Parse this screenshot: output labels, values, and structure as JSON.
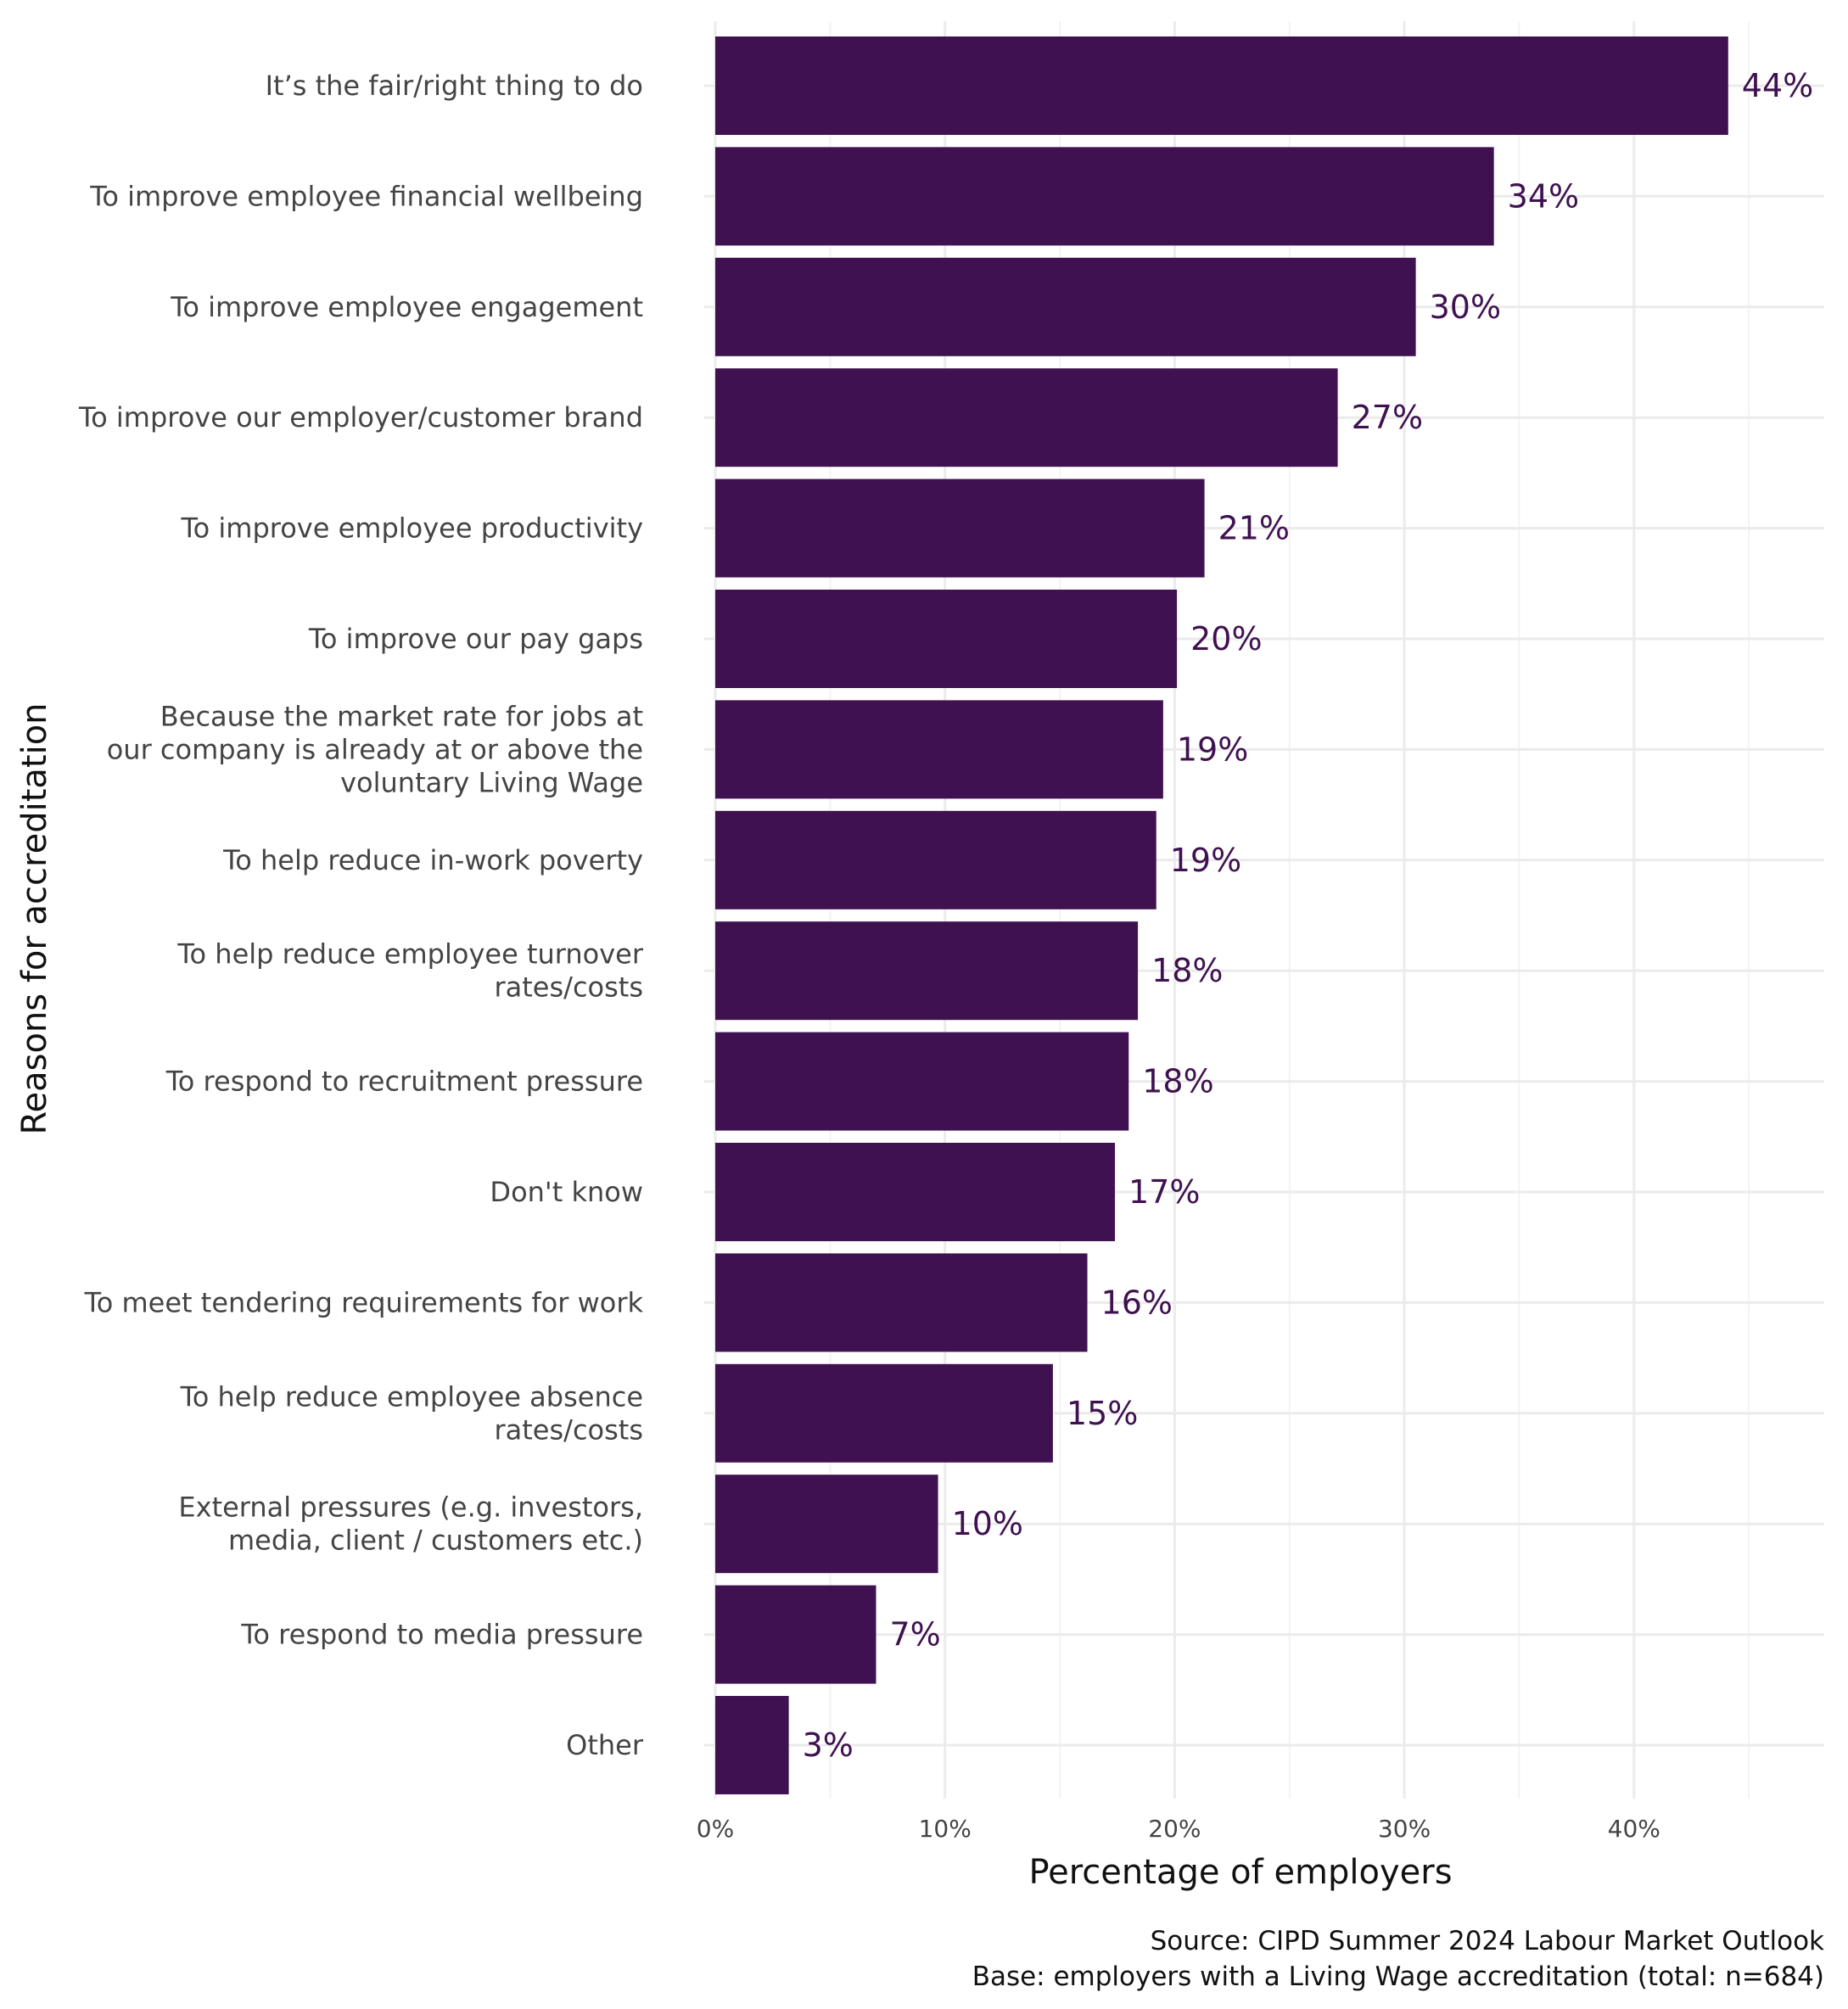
{
  "chart_data": {
    "type": "bar",
    "orientation": "horizontal",
    "xlabel": "Percentage of employers",
    "ylabel": "Reasons for accreditation",
    "caption": [
      "Source: CIPD Summer 2024 Labour Market Outlook",
      "Base: employers with a Living Wage accreditation (total: n=684)"
    ],
    "xlim": [
      0,
      48
    ],
    "ticks": [
      0,
      10,
      20,
      30,
      40
    ],
    "tick_labels": [
      "0%",
      "10%",
      "20%",
      "30%",
      "40%"
    ],
    "grid": true,
    "bar_color": "#3f1150",
    "categories": [
      [
        "It’s the fair/right thing to do"
      ],
      [
        "To improve employee financial wellbeing"
      ],
      [
        "To improve employee engagement"
      ],
      [
        "To improve our employer/customer brand"
      ],
      [
        "To improve employee productivity"
      ],
      [
        "To improve our pay gaps"
      ],
      [
        "Because the market rate for jobs at",
        "our company is already at or above the",
        "voluntary Living Wage"
      ],
      [
        "To help reduce in-work poverty"
      ],
      [
        "To help reduce employee turnover",
        "rates/costs"
      ],
      [
        "To respond to recruitment pressure"
      ],
      [
        "Don't know"
      ],
      [
        "To meet tendering requirements for work"
      ],
      [
        "To help reduce employee absence",
        "rates/costs"
      ],
      [
        "External pressures (e.g. investors,",
        "media, client / customers etc.)"
      ],
      [
        "To respond to media pressure"
      ],
      [
        "Other"
      ]
    ],
    "values": [
      44.1,
      33.9,
      30.5,
      27.1,
      21.3,
      20.1,
      19.5,
      19.2,
      18.4,
      18.0,
      17.4,
      16.2,
      14.7,
      9.7,
      7.0,
      3.2
    ],
    "data_labels": [
      "44%",
      "34%",
      "30%",
      "27%",
      "21%",
      "20%",
      "19%",
      "19%",
      "18%",
      "18%",
      "17%",
      "16%",
      "15%",
      "10%",
      "7%",
      "3%"
    ]
  }
}
